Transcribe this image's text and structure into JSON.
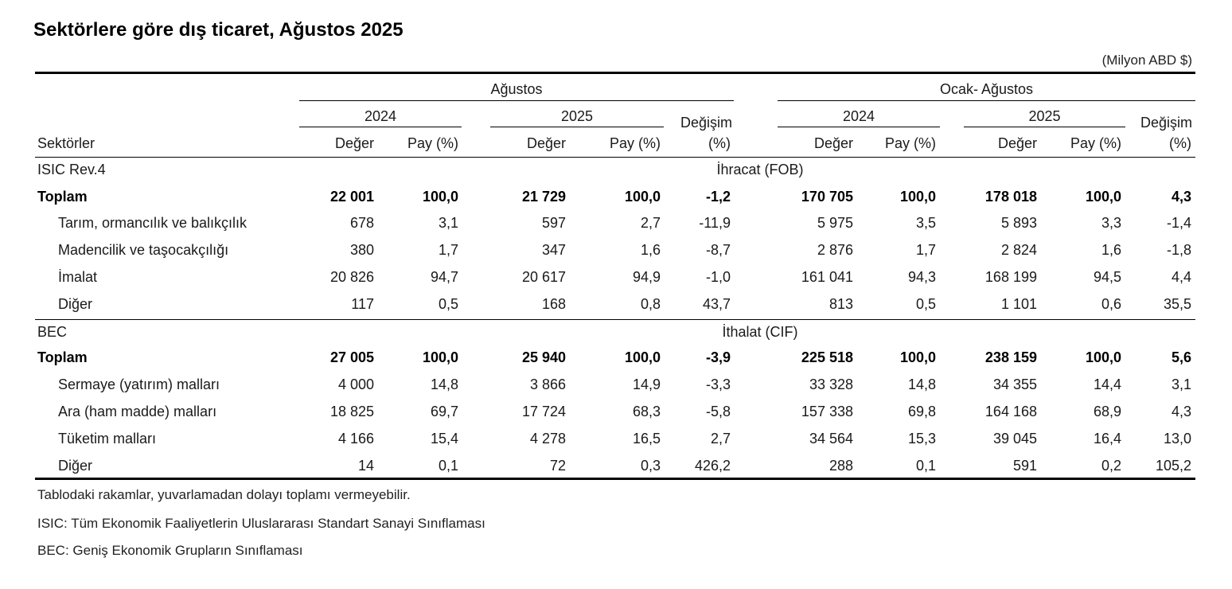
{
  "title": "Sektörlere göre dış ticaret, Ağustos 2025",
  "unit": "(Milyon ABD $)",
  "headers": {
    "period1": "Ağustos",
    "period2": "Ocak- Ağustos",
    "year1": "2024",
    "year2": "2025",
    "change_label": "Değişim",
    "change_unit": "(%)",
    "value_label": "Değer",
    "share_label": "Pay (%)",
    "sector_label": "Sektörler"
  },
  "sections": [
    {
      "classification": "ISIC  Rev.4",
      "flow": "İhracat (FOB)",
      "rows": [
        {
          "name": "Toplam",
          "bold": true,
          "cells": [
            "22 001",
            "100,0",
            "21 729",
            "100,0",
            "-1,2",
            "170 705",
            "100,0",
            "178 018",
            "100,0",
            "4,3"
          ]
        },
        {
          "name": "Tarım, ormancılık ve balıkçılık",
          "bold": false,
          "cells": [
            "678",
            "3,1",
            "597",
            "2,7",
            "-11,9",
            "5 975",
            "3,5",
            "5 893",
            "3,3",
            "-1,4"
          ]
        },
        {
          "name": "Madencilik ve taşocakçılığı",
          "bold": false,
          "cells": [
            "380",
            "1,7",
            "347",
            "1,6",
            "-8,7",
            "2 876",
            "1,7",
            "2 824",
            "1,6",
            "-1,8"
          ]
        },
        {
          "name": "İmalat",
          "bold": false,
          "cells": [
            "20 826",
            "94,7",
            "20 617",
            "94,9",
            "-1,0",
            "161 041",
            "94,3",
            "168 199",
            "94,5",
            "4,4"
          ]
        },
        {
          "name": "Diğer",
          "bold": false,
          "cells": [
            "117",
            "0,5",
            "168",
            "0,8",
            "43,7",
            "813",
            "0,5",
            "1 101",
            "0,6",
            "35,5"
          ]
        }
      ]
    },
    {
      "classification": "BEC",
      "flow": "İthalat (CIF)",
      "rows": [
        {
          "name": "Toplam",
          "bold": true,
          "cells": [
            "27 005",
            "100,0",
            "25 940",
            "100,0",
            "-3,9",
            "225 518",
            "100,0",
            "238 159",
            "100,0",
            "5,6"
          ]
        },
        {
          "name": "Sermaye (yatırım) malları",
          "bold": false,
          "cells": [
            "4 000",
            "14,8",
            "3 866",
            "14,9",
            "-3,3",
            "33 328",
            "14,8",
            "34 355",
            "14,4",
            "3,1"
          ]
        },
        {
          "name": "Ara (ham madde) malları",
          "bold": false,
          "cells": [
            "18 825",
            "69,7",
            "17 724",
            "68,3",
            "-5,8",
            "157 338",
            "69,8",
            "164 168",
            "68,9",
            "4,3"
          ]
        },
        {
          "name": "Tüketim malları",
          "bold": false,
          "cells": [
            "4 166",
            "15,4",
            "4 278",
            "16,5",
            "2,7",
            "34 564",
            "15,3",
            "39 045",
            "16,4",
            "13,0"
          ]
        },
        {
          "name": "Diğer",
          "bold": false,
          "cells": [
            "14",
            "0,1",
            "72",
            "0,3",
            "426,2",
            "288",
            "0,1",
            "591",
            "0,2",
            "105,2"
          ]
        }
      ]
    }
  ],
  "notes": [
    "Tablodaki rakamlar, yuvarlamadan dolayı toplamı vermeyebilir.",
    "ISIC: Tüm Ekonomik Faaliyetlerin Uluslararası Standart Sanayi Sınıflaması",
    "BEC: Geniş Ekonomik Grupların Sınıflaması"
  ]
}
